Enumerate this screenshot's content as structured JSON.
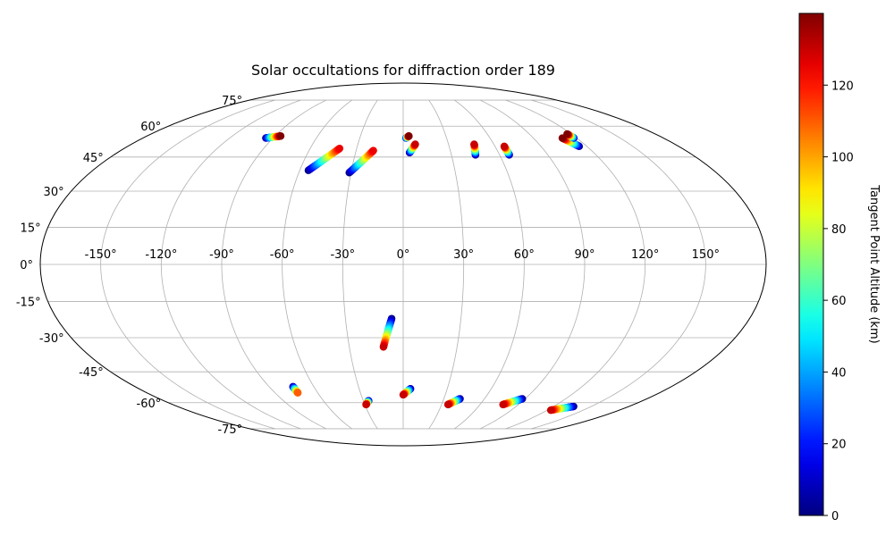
{
  "chart_data": {
    "type": "scatter",
    "projection": "Mollweide",
    "title": "Solar occultations for diffraction order 189",
    "grid": true,
    "longitude_ticks": [
      -150,
      -120,
      -90,
      -60,
      -30,
      0,
      30,
      60,
      90,
      120,
      150
    ],
    "longitude_tick_labels": [
      "-150°",
      "-120°",
      "-90°",
      "-60°",
      "-30°",
      "0°",
      "30°",
      "60°",
      "90°",
      "120°",
      "150°"
    ],
    "latitude_ticks": [
      -75,
      -60,
      -45,
      -30,
      -15,
      0,
      15,
      30,
      45,
      60,
      75
    ],
    "latitude_tick_labels": [
      "-75°",
      "-60°",
      "-45°",
      "-30°",
      "-15°",
      "0°",
      "15°",
      "30°",
      "45°",
      "60°",
      "75°"
    ],
    "colorbar": {
      "label": "Tangent Point Altitude (km)",
      "colormap": "jet",
      "range": [
        0,
        140
      ],
      "ticks": [
        0,
        20,
        40,
        60,
        80,
        100,
        120
      ],
      "tick_labels": [
        "0",
        "20",
        "40",
        "60",
        "80",
        "100",
        "120"
      ]
    },
    "tracks": [
      {
        "start_lon": -95,
        "start_lat": 54,
        "end_lon": -86,
        "end_lat": 55,
        "altitude_start_km": 0,
        "altitude_end_km": 140
      },
      {
        "start_lon": -55,
        "start_lat": 39,
        "end_lon": -41,
        "end_lat": 49,
        "altitude_start_km": 0,
        "altitude_end_km": 125
      },
      {
        "start_lon": -31,
        "start_lat": 38,
        "end_lon": -19,
        "end_lat": 48,
        "altitude_start_km": 0,
        "altitude_end_km": 125
      },
      {
        "start_lon": 4,
        "start_lat": 47,
        "end_lon": 8,
        "end_lat": 51,
        "altitude_start_km": 0,
        "altitude_end_km": 130
      },
      {
        "start_lon": 2,
        "start_lat": 54,
        "end_lon": 4,
        "end_lat": 55,
        "altitude_start_km": 10,
        "altitude_end_km": 140
      },
      {
        "start_lon": 45,
        "start_lat": 46,
        "end_lon": 47,
        "end_lat": 51,
        "altitude_start_km": 0,
        "altitude_end_km": 130
      },
      {
        "start_lon": 66,
        "start_lat": 46,
        "end_lon": 66,
        "end_lat": 50,
        "altitude_start_km": 0,
        "altitude_end_km": 130
      },
      {
        "start_lon": 115,
        "start_lat": 50,
        "end_lon": 110,
        "end_lat": 54,
        "altitude_start_km": 0,
        "altitude_end_km": 140
      },
      {
        "start_lon": 118,
        "start_lat": 54,
        "end_lon": 117,
        "end_lat": 56,
        "altitude_start_km": 10,
        "altitude_end_km": 140
      },
      {
        "start_lon": -6,
        "start_lat": -22,
        "end_lon": -11,
        "end_lat": -34,
        "altitude_start_km": 0,
        "altitude_end_km": 130
      },
      {
        "start_lon": -74,
        "start_lat": -52,
        "end_lon": -74,
        "end_lat": -55,
        "altitude_start_km": 0,
        "altitude_end_km": 110
      },
      {
        "start_lon": -26,
        "start_lat": -59,
        "end_lon": -29,
        "end_lat": -61,
        "altitude_start_km": 0,
        "altitude_end_km": 130
      },
      {
        "start_lon": 5,
        "start_lat": -53,
        "end_lon": 0,
        "end_lat": -56,
        "altitude_start_km": 0,
        "altitude_end_km": 130
      },
      {
        "start_lon": 42,
        "start_lat": -58,
        "end_lon": 35,
        "end_lat": -61,
        "altitude_start_km": 0,
        "altitude_end_km": 130
      },
      {
        "start_lon": 88,
        "start_lat": -58,
        "end_lon": 78,
        "end_lat": -61,
        "altitude_start_km": 0,
        "altitude_end_km": 130
      },
      {
        "start_lon": 136,
        "start_lat": -62,
        "end_lon": 123,
        "end_lat": -64,
        "altitude_start_km": 0,
        "altitude_end_km": 130
      }
    ]
  }
}
